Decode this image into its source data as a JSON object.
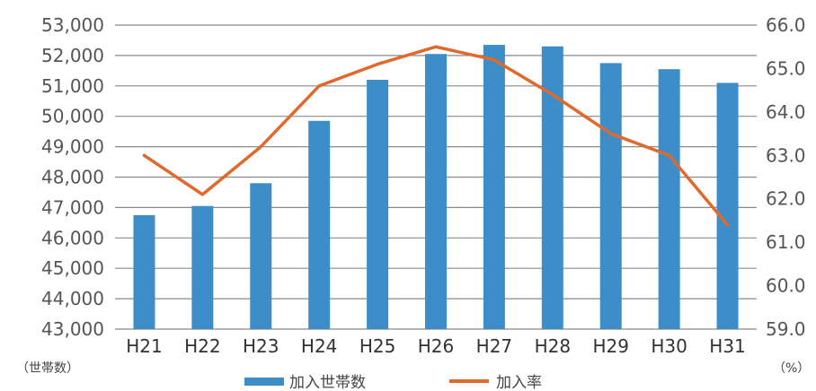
{
  "chart_data": {
    "type": "bar",
    "categories": [
      "H21",
      "H22",
      "H23",
      "H24",
      "H25",
      "H26",
      "H27",
      "H28",
      "H29",
      "H30",
      "H31"
    ],
    "series": [
      {
        "name": "加入世帯数",
        "type": "bar",
        "axis": "left",
        "color": "#3d8ec8",
        "values": [
          46750,
          47050,
          47800,
          49850,
          51200,
          52050,
          52350,
          52300,
          51750,
          51550,
          51100
        ]
      },
      {
        "name": "加入率",
        "type": "line",
        "axis": "right",
        "color": "#e06a2e",
        "values": [
          63.0,
          62.1,
          63.2,
          64.6,
          65.1,
          65.5,
          65.2,
          64.4,
          63.5,
          63.0,
          61.4
        ]
      }
    ],
    "y_left": {
      "min": 43000,
      "max": 53000,
      "ticks": [
        43000,
        44000,
        45000,
        46000,
        47000,
        48000,
        49000,
        50000,
        51000,
        52000,
        53000
      ],
      "tick_labels": [
        "43,000",
        "44,000",
        "45,000",
        "46,000",
        "47,000",
        "48,000",
        "49,000",
        "50,000",
        "51,000",
        "52,000",
        "53,000"
      ],
      "unit_label": "（世帯数）"
    },
    "y_right": {
      "min": 59.0,
      "max": 66.0,
      "ticks": [
        59,
        60,
        61,
        62,
        63,
        64,
        65,
        66
      ],
      "tick_labels": [
        "59.0",
        "60.0",
        "61.0",
        "62.0",
        "63.0",
        "64.0",
        "65.0",
        "66.0"
      ],
      "unit_label": "（%）"
    },
    "grid": true,
    "legend_position": "bottom"
  }
}
